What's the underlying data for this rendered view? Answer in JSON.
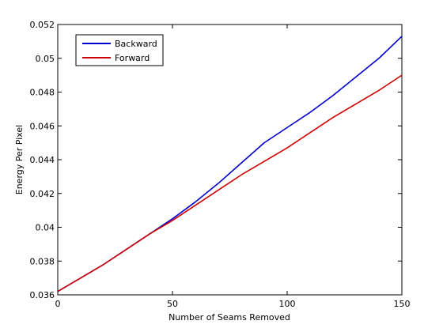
{
  "chart_data": {
    "type": "line",
    "title": "",
    "xlabel": "Number of Seams Removed",
    "ylabel": "Energy Per Pixel",
    "xlim": [
      0,
      150
    ],
    "ylim": [
      0.036,
      0.052
    ],
    "xticks": [
      0,
      50,
      100,
      150
    ],
    "xtick_labels": [
      "0",
      "50",
      "100",
      "150"
    ],
    "yticks": [
      0.036,
      0.038,
      0.04,
      0.042,
      0.044,
      0.046,
      0.048,
      0.05,
      0.052
    ],
    "ytick_labels": [
      "0.036",
      "0.038",
      "0.04",
      "0.042",
      "0.044",
      "0.046",
      "0.048",
      "0.05",
      "0.052"
    ],
    "grid": false,
    "legend_position": "top-left",
    "series": [
      {
        "name": "Backward",
        "color": "#0000cc",
        "x": [
          0,
          10,
          20,
          30,
          40,
          50,
          60,
          70,
          80,
          90,
          100,
          110,
          120,
          130,
          140,
          150
        ],
        "y": [
          0.0362,
          0.037,
          0.0378,
          0.0387,
          0.0396,
          0.0405,
          0.0415,
          0.0426,
          0.0438,
          0.045,
          0.0459,
          0.0468,
          0.0478,
          0.0489,
          0.05,
          0.0513
        ]
      },
      {
        "name": "Forward",
        "color": "#cc0000",
        "x": [
          0,
          10,
          20,
          30,
          40,
          50,
          60,
          70,
          80,
          90,
          100,
          110,
          120,
          130,
          140,
          150
        ],
        "y": [
          0.0362,
          0.037,
          0.0378,
          0.0387,
          0.0396,
          0.0404,
          0.0413,
          0.0422,
          0.0431,
          0.0439,
          0.0447,
          0.0456,
          0.0465,
          0.0473,
          0.0481,
          0.049
        ]
      }
    ]
  }
}
